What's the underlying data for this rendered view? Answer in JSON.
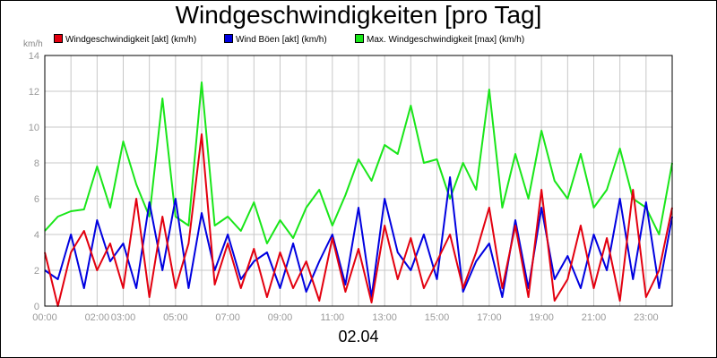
{
  "chart_data": {
    "type": "line",
    "title": "Windgeschwindigkeiten [pro Tag]",
    "ylabel": "km/h",
    "xlabel": "02.04",
    "ylim": [
      0,
      14
    ],
    "y_ticks": [
      0,
      2,
      4,
      6,
      8,
      10,
      12,
      14
    ],
    "xlim": [
      "00:00",
      "24:00"
    ],
    "x_tick_labels": [
      "00:00",
      "02:00",
      "03:00",
      "05:00",
      "07:00",
      "09:00",
      "11:00",
      "13:00",
      "15:00",
      "17:00",
      "19:00",
      "21:00",
      "23:00"
    ],
    "grid": true,
    "legend_position": "top",
    "x": [
      "00:00",
      "00:30",
      "01:00",
      "01:30",
      "02:00",
      "02:30",
      "03:00",
      "03:30",
      "04:00",
      "04:30",
      "05:00",
      "05:30",
      "06:00",
      "06:30",
      "07:00",
      "07:30",
      "08:00",
      "08:30",
      "09:00",
      "09:30",
      "10:00",
      "10:30",
      "11:00",
      "11:30",
      "12:00",
      "12:30",
      "13:00",
      "13:30",
      "14:00",
      "14:30",
      "15:00",
      "15:30",
      "16:00",
      "16:30",
      "17:00",
      "17:30",
      "18:00",
      "18:30",
      "19:00",
      "19:30",
      "20:00",
      "20:30",
      "21:00",
      "21:30",
      "22:00",
      "22:30",
      "23:00",
      "23:30",
      "24:00"
    ],
    "series": [
      {
        "name": "Windgeschwindigkeit [akt] (km/h)",
        "color": "#e3000f",
        "values": [
          3.0,
          0.0,
          3.0,
          4.2,
          2.0,
          3.5,
          1.0,
          6.0,
          0.5,
          5.0,
          1.0,
          3.5,
          9.6,
          1.2,
          3.5,
          1.0,
          3.2,
          0.5,
          3.0,
          1.0,
          2.5,
          0.3,
          3.8,
          0.8,
          3.2,
          0.2,
          4.5,
          1.5,
          3.8,
          1.0,
          2.5,
          4.0,
          1.0,
          3.0,
          5.5,
          1.0,
          4.5,
          0.5,
          6.5,
          0.3,
          1.5,
          4.5,
          1.0,
          3.8,
          0.3,
          6.5,
          0.5,
          2.0,
          5.5
        ]
      },
      {
        "name": "Wind Böen [akt] (km/h)",
        "color": "#0000e0",
        "values": [
          2.0,
          1.5,
          4.0,
          1.0,
          4.8,
          2.5,
          3.5,
          1.0,
          5.8,
          2.0,
          6.0,
          1.0,
          5.2,
          2.0,
          4.0,
          1.5,
          2.5,
          3.0,
          1.0,
          3.5,
          0.8,
          2.5,
          4.0,
          1.2,
          5.5,
          0.5,
          6.0,
          3.0,
          2.0,
          4.0,
          1.5,
          7.2,
          0.8,
          2.5,
          3.5,
          0.5,
          4.8,
          1.0,
          5.5,
          1.5,
          2.8,
          1.0,
          4.0,
          2.0,
          6.0,
          1.5,
          5.8,
          1.0,
          5.0
        ]
      },
      {
        "name": "Max. Windgeschwindigkeit [max] (km/h)",
        "color": "#19e619",
        "values": [
          4.2,
          5.0,
          5.3,
          5.4,
          7.8,
          5.5,
          9.2,
          6.8,
          5.0,
          11.6,
          5.0,
          4.5,
          12.5,
          4.5,
          5.0,
          4.2,
          5.8,
          3.5,
          4.8,
          3.8,
          5.5,
          6.5,
          4.5,
          6.2,
          8.2,
          7.0,
          9.0,
          8.5,
          11.2,
          8.0,
          8.2,
          6.0,
          8.0,
          6.5,
          12.1,
          5.5,
          8.5,
          6.0,
          9.8,
          7.0,
          6.0,
          8.5,
          5.5,
          6.5,
          8.8,
          6.0,
          5.5,
          4.0,
          8.0
        ]
      }
    ]
  }
}
